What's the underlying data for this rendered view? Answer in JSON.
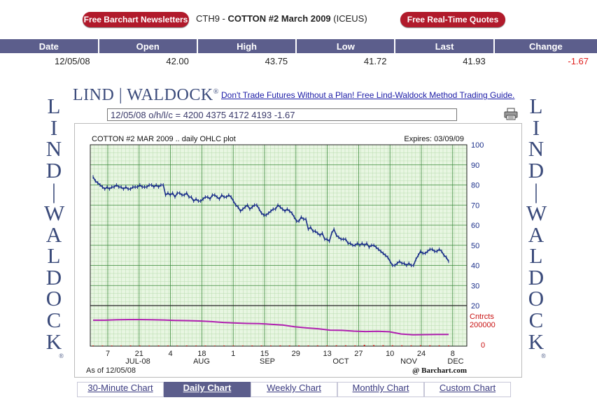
{
  "header": {
    "newsletters_button": "Free Barchart Newsletters",
    "quotes_button": "Free Real-Time Quotes",
    "symbol_code": "CTH9 -",
    "contract_name": "COTTON #2 March 2009",
    "exchange": "(ICEUS)"
  },
  "quote_table": {
    "columns": [
      "Date",
      "Open",
      "High",
      "Low",
      "Last",
      "Change"
    ],
    "row": [
      "12/05/08",
      "42.00",
      "43.75",
      "41.72",
      "41.93",
      "-1.67"
    ]
  },
  "branding": {
    "logo_text": "LIND | WALDOCK",
    "registered_mark": "®",
    "side_text": "LIND|WALDOCK",
    "promo_link": "Don't Trade Futures Without a Plan! Free Lind-Waldock Method Trading Guide."
  },
  "ohlc_readout": "12/05/08 o/h/l/c = 4200 4375 4172 4193 -1.67",
  "icons": {
    "printer": "printer-icon"
  },
  "colors": {
    "price_line": "#1b2f8a",
    "open_interest_line": "#b020b0",
    "volume_bars": "#c81010",
    "grid": "#3b8a3b",
    "plot_bg": "#e8f6e2",
    "header_bar": "#5c5e8c",
    "button_red": "#b11a2b",
    "negative": "#e0201e"
  },
  "chart_data": {
    "type": "line",
    "title": "COTTON #2 MAR 2009 .. daily OHLC plot",
    "expires_label": "Expires: 03/09/09",
    "price_axis": {
      "ticks": [
        20,
        30,
        40,
        50,
        60,
        70,
        80,
        90,
        100
      ],
      "ylim": [
        20,
        100
      ]
    },
    "lower_axis": {
      "label_line1": "Cntrcts",
      "label_line2": "200000",
      "zero_label": "0"
    },
    "x_tick_labels": [
      "7",
      "21",
      "4",
      "18",
      "1",
      "15",
      "29",
      "13",
      "27",
      "10",
      "24",
      "8"
    ],
    "month_labels": [
      "JUL-08",
      "AUG",
      "SEP",
      "OCT",
      "NOV",
      "DEC"
    ],
    "as_of_label": "As of 12/05/08",
    "source_label": "@ Barchart.com",
    "series": [
      {
        "name": "Daily price",
        "values": [
          84,
          82,
          81,
          80,
          79,
          78,
          79,
          78,
          79,
          79,
          80,
          79,
          79,
          78,
          79,
          78,
          78,
          79,
          79,
          79,
          80,
          79,
          79,
          79,
          80,
          80,
          79,
          80,
          79,
          80,
          80,
          75,
          76,
          75,
          76,
          74,
          76,
          76,
          75,
          75,
          76,
          74,
          74,
          72,
          73,
          72,
          72,
          73,
          74,
          74,
          73,
          75,
          75,
          74,
          73,
          75,
          74,
          74,
          75,
          74,
          72,
          70,
          69,
          67,
          68,
          69,
          70,
          68,
          69,
          70,
          70,
          68,
          66,
          65,
          65,
          66,
          67,
          68,
          68,
          70,
          69,
          68,
          67,
          68,
          67,
          66,
          64,
          62,
          62,
          64,
          63,
          63,
          58,
          59,
          57,
          57,
          56,
          55,
          56,
          53,
          53,
          52,
          56,
          58,
          55,
          54,
          53,
          53,
          53,
          51,
          51,
          50,
          50,
          51,
          50,
          51,
          50,
          51,
          49,
          50,
          50,
          49,
          48,
          47,
          46,
          45,
          44,
          42,
          40,
          40,
          41,
          42,
          41,
          41,
          40,
          41,
          40,
          40,
          43,
          45,
          47,
          46,
          46,
          47,
          48,
          48,
          47,
          47,
          48,
          47,
          45,
          44,
          42
        ]
      },
      {
        "name": "Open interest",
        "values": [
          128000,
          128000,
          130000,
          131000,
          131000,
          130000,
          129000,
          127000,
          126000,
          124000,
          121000,
          117000,
          114000,
          112000,
          111000,
          108000,
          104000,
          96000,
          90000,
          86000,
          79000,
          78000,
          74000,
          72000,
          73000,
          71000,
          60000,
          56000,
          57000,
          58000,
          58000
        ]
      },
      {
        "name": "Volume",
        "values": [
          3000,
          3200,
          3000,
          2700,
          3500,
          3100,
          2900,
          3300,
          3000,
          2800,
          3600,
          3200,
          3000,
          2900,
          3400,
          3100,
          3000,
          3600,
          3300,
          3100,
          3800,
          3400,
          3300,
          3600,
          3900,
          3500,
          4200,
          4000,
          3800,
          6500,
          5200,
          4400,
          4200,
          4000,
          3900,
          4100,
          4000,
          3800,
          3600
        ]
      }
    ]
  },
  "tabs": [
    {
      "label": "30-Minute Chart",
      "active": false
    },
    {
      "label": "Daily Chart",
      "active": true
    },
    {
      "label": "Weekly Chart",
      "active": false
    },
    {
      "label": "Monthly Chart",
      "active": false
    },
    {
      "label": "Custom Chart",
      "active": false
    }
  ]
}
